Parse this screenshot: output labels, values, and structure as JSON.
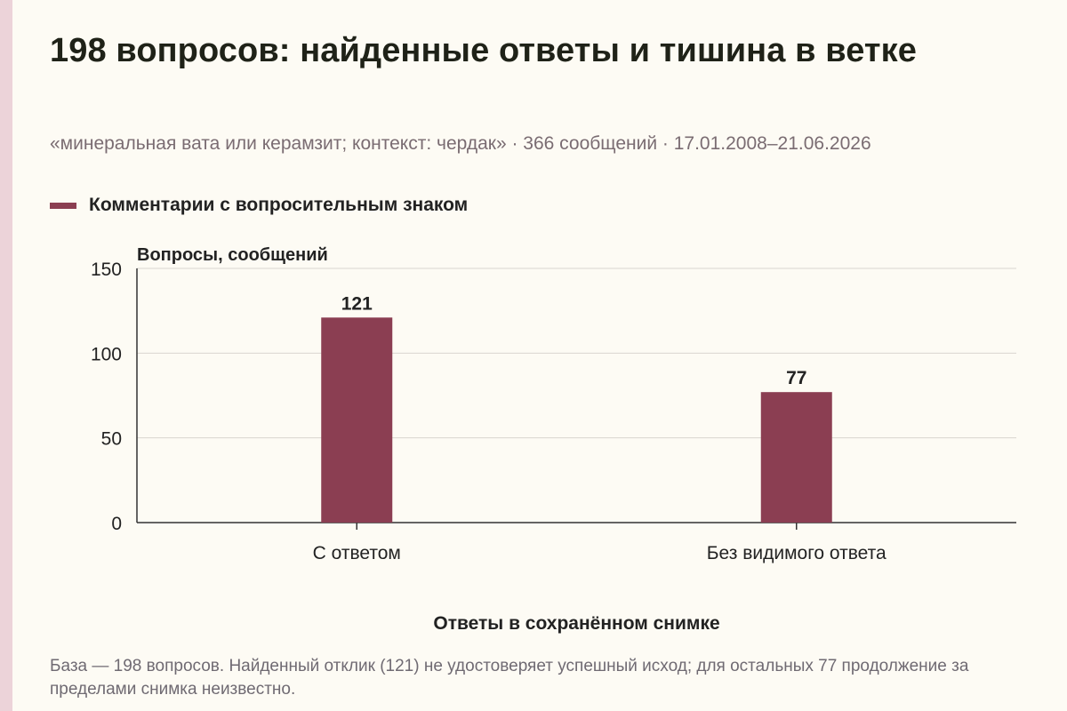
{
  "title": "198 вопросов: найденные ответы и тишина в ветке",
  "subtitle": "«минеральная вата или керамзит; контекст: чердак» · 366 сообщений · 17.01.2008–21.06.2026",
  "caption": "База — 198 вопросов. Найденный отклик (121) не удостоверяет успешный исход; для остальных 77 продолжение за пределами снимка неизвестно.",
  "colors": {
    "bar": "#8b3e52",
    "grid": "#d9d6cf",
    "axis": "#333333"
  },
  "chart_data": {
    "type": "bar",
    "categories": [
      "С ответом",
      "Без видимого ответа"
    ],
    "series": [
      {
        "name": "Комментарии с вопросительным знаком",
        "values": [
          121,
          77
        ]
      }
    ],
    "data_labels": [
      "121",
      "77"
    ],
    "ylabel": "Вопросы, сообщений",
    "xlabel": "Ответы в сохранённом снимке",
    "ylim": [
      0,
      150
    ],
    "yticks": [
      0,
      50,
      100,
      150
    ],
    "grid": true,
    "legend_position": "top-left"
  }
}
